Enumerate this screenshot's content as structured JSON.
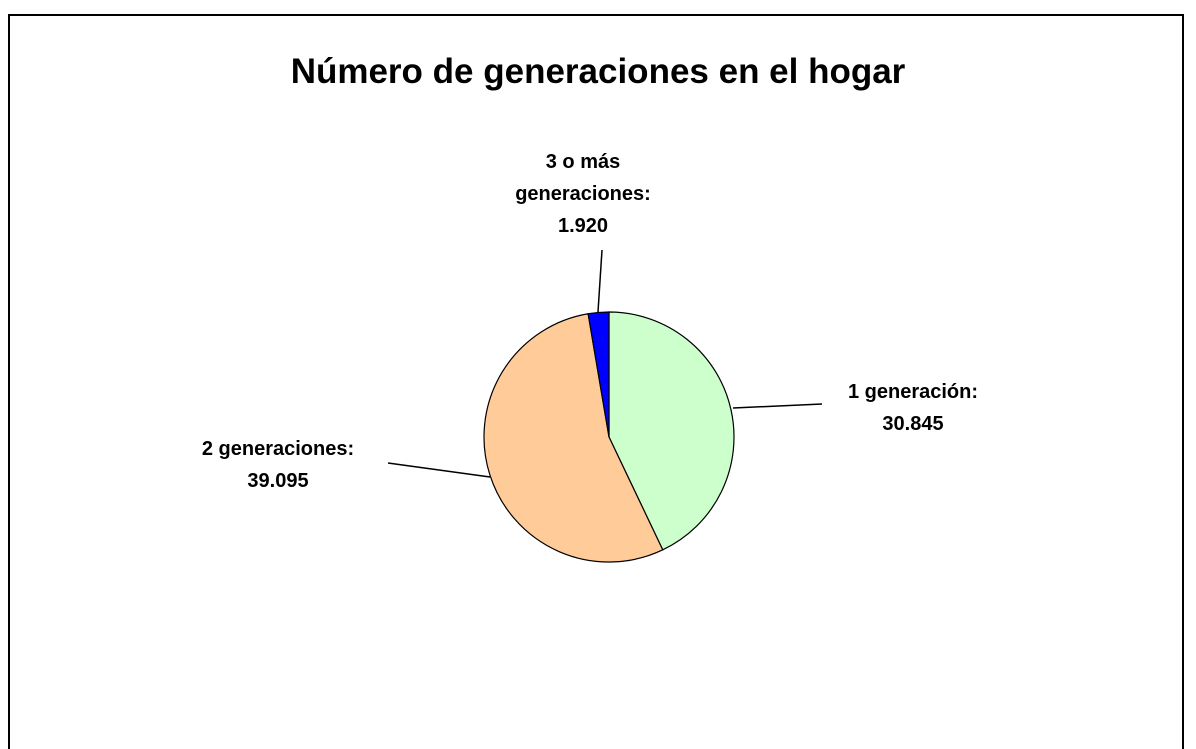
{
  "chart_data": {
    "type": "pie",
    "title": "Número de generaciones en el hogar",
    "categories": [
      "1 generación:",
      "2 generaciones:",
      "3 o más generaciones:"
    ],
    "values": [
      30845,
      39095,
      1920
    ],
    "value_labels": [
      "30.845",
      "39.095",
      "1.920"
    ],
    "colors": [
      "#ccffcc",
      "#ffcc99",
      "#0000ff"
    ]
  }
}
